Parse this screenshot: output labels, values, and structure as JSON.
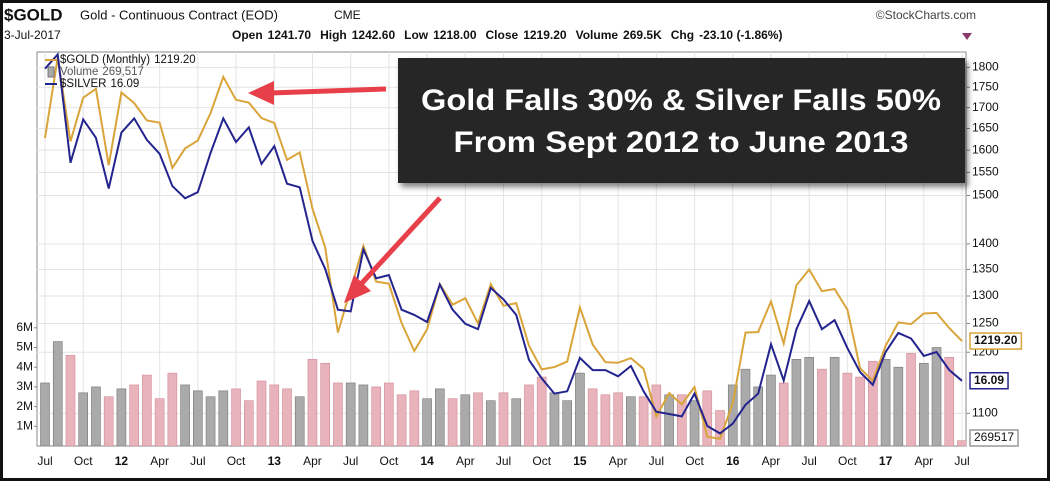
{
  "chart_data": {
    "type": "line",
    "symbol": "$GOLD",
    "name": "Gold - Continuous Contract (EOD)",
    "exchange": "CME",
    "source": "©StockCharts.com",
    "date": "3-Jul-2017",
    "quote": [
      {
        "label": "Open",
        "value": "1241.70"
      },
      {
        "label": "High",
        "value": "1242.60"
      },
      {
        "label": "Low",
        "value": "1218.00"
      },
      {
        "label": "Close",
        "value": "1219.20"
      },
      {
        "label": "Volume",
        "value": "269.5K"
      },
      {
        "label": "Chg",
        "value": "-23.10 (-1.86%)"
      }
    ],
    "annotation": [
      "Gold Falls 30% & Silver Falls 50%",
      "From Sept 2012 to June 2013"
    ],
    "categories": [
      "Jul",
      null,
      null,
      "Oct",
      null,
      null,
      "12",
      null,
      null,
      "Apr",
      null,
      null,
      "Jul",
      null,
      null,
      "Oct",
      null,
      null,
      "13",
      null,
      null,
      "Apr",
      null,
      null,
      "Jul",
      null,
      null,
      "Oct",
      null,
      null,
      "14",
      null,
      null,
      "Apr",
      null,
      null,
      "Jul",
      null,
      null,
      "Oct",
      null,
      null,
      "15",
      null,
      null,
      "Apr",
      null,
      null,
      "Jul",
      null,
      null,
      "Oct",
      null,
      null,
      "16",
      null,
      null,
      "Apr",
      null,
      null,
      "Jul",
      null,
      null,
      "Oct",
      null,
      null,
      "17",
      null,
      null,
      "Apr",
      null,
      null,
      "Jul"
    ],
    "log_scale": true,
    "grid": true,
    "ylim": [
      1050,
      1840
    ],
    "yticks": [
      1100,
      1200,
      1250,
      1300,
      1350,
      1400,
      1500,
      1550,
      1600,
      1650,
      1700,
      1750,
      1800
    ],
    "y2lim": [
      13.3,
      42
    ],
    "volume_ylim": [
      0,
      20000000
    ],
    "volume_ticks": [
      {
        "value": 1000000,
        "label": "1M"
      },
      {
        "value": 2000000,
        "label": "2M"
      },
      {
        "value": 3000000,
        "label": "3M"
      },
      {
        "value": 4000000,
        "label": "4M"
      },
      {
        "value": 5000000,
        "label": "5M"
      },
      {
        "value": 6000000,
        "label": "6M"
      }
    ],
    "series": [
      {
        "name": "$GOLD (Monthly)",
        "last_label": "1219.20",
        "color": "#d9a43a",
        "values": [
          1628,
          1825,
          1620,
          1724,
          1746,
          1566,
          1737,
          1711,
          1669,
          1664,
          1560,
          1604,
          1622,
          1687,
          1776,
          1719,
          1712,
          1675,
          1663,
          1578,
          1595,
          1472,
          1393,
          1234,
          1313,
          1396,
          1327,
          1323,
          1251,
          1202,
          1240,
          1322,
          1284,
          1296,
          1250,
          1322,
          1282,
          1287,
          1211,
          1171,
          1175,
          1184,
          1279,
          1213,
          1183,
          1182,
          1190,
          1172,
          1095,
          1132,
          1114,
          1142,
          1064,
          1061,
          1116,
          1234,
          1235,
          1290,
          1215,
          1320,
          1350,
          1309,
          1313,
          1275,
          1173,
          1152,
          1211,
          1252,
          1249,
          1268,
          1269,
          1242,
          1219.2
        ]
      },
      {
        "name": "$SILVER",
        "last_label": "16.09",
        "color": "#24248f",
        "axis": "y2",
        "values": [
          40.0,
          41.7,
          30.4,
          34.5,
          32.7,
          28.2,
          33.2,
          34.6,
          32.5,
          31.2,
          28.4,
          27.4,
          27.9,
          31.3,
          34.6,
          32.3,
          33.7,
          30.3,
          31.9,
          28.6,
          28.3,
          24.2,
          22.3,
          19.8,
          19.7,
          23.6,
          21.7,
          21.9,
          19.8,
          19.5,
          19.1,
          21.3,
          19.8,
          19.0,
          18.7,
          21.1,
          20.4,
          19.5,
          17.1,
          16.2,
          15.5,
          15.6,
          17.2,
          16.6,
          16.6,
          16.3,
          16.8,
          15.6,
          14.7,
          14.6,
          14.5,
          15.5,
          14.1,
          13.8,
          14.2,
          15.0,
          15.5,
          17.9,
          16.1,
          18.7,
          20.3,
          18.7,
          19.2,
          17.7,
          16.5,
          15.9,
          17.5,
          18.5,
          18.2,
          17.3,
          17.5,
          16.6,
          16.09
        ]
      },
      {
        "name": "Volume",
        "last_label": "269,517",
        "tag_label": "269517",
        "up_color": "#aaaaaa",
        "down_color": "#e9b3bb",
        "values": [
          3200000,
          5300000,
          4600000,
          2700000,
          3000000,
          2500000,
          2900000,
          3100000,
          3600000,
          2400000,
          3700000,
          3100000,
          2800000,
          2500000,
          2800000,
          2900000,
          2300000,
          3300000,
          3100000,
          2900000,
          2500000,
          4400000,
          4200000,
          3200000,
          3200000,
          3100000,
          3000000,
          3200000,
          2600000,
          2800000,
          2400000,
          2900000,
          2400000,
          2600000,
          2700000,
          2300000,
          2700000,
          2400000,
          3100000,
          3500000,
          2700000,
          2300000,
          3700000,
          2900000,
          2600000,
          2700000,
          2500000,
          2500000,
          3100000,
          2600000,
          2600000,
          2300000,
          2800000,
          1800000,
          3100000,
          3900000,
          3000000,
          3600000,
          3200000,
          4400000,
          4500000,
          3900000,
          4500000,
          3700000,
          3500000,
          4300000,
          4400000,
          4000000,
          4700000,
          4200000,
          5000000,
          4500000,
          269517
        ]
      }
    ]
  }
}
